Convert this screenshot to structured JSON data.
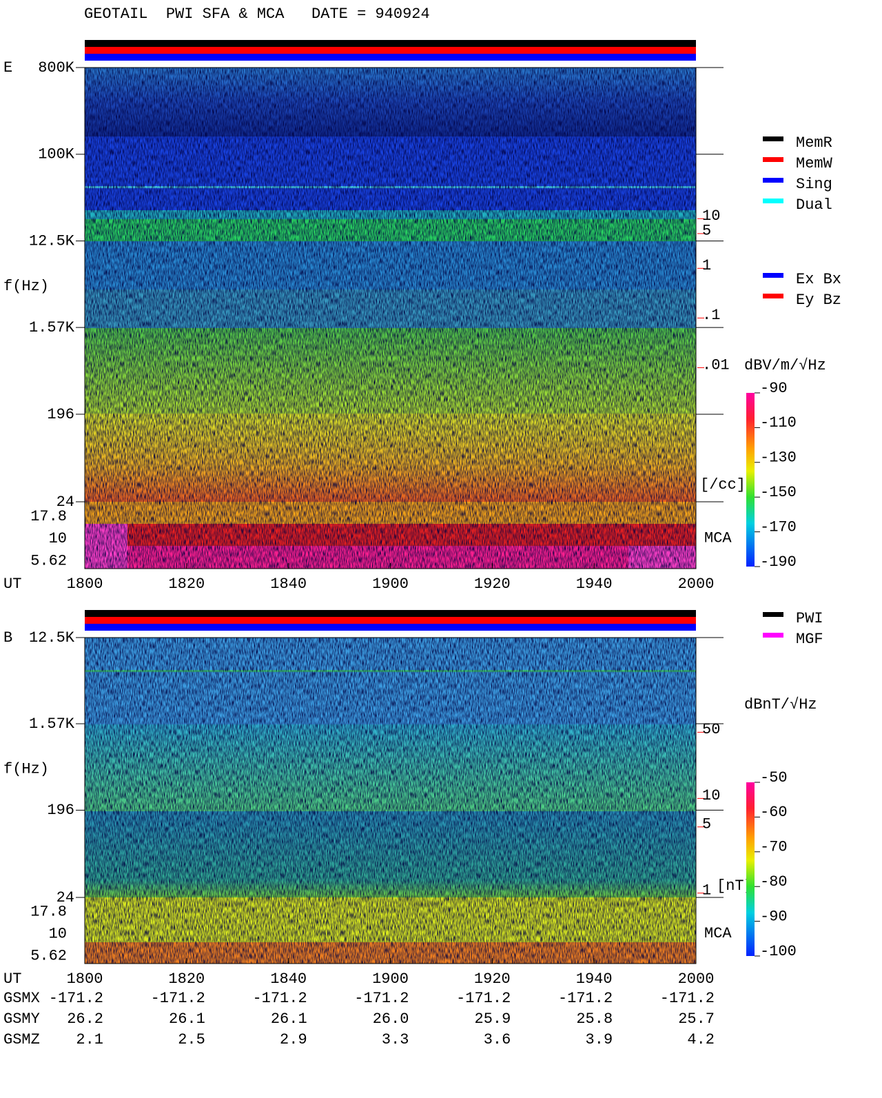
{
  "title": "GEOTAIL  PWI SFA & MCA   DATE = 940924",
  "chart_data": [
    {
      "type": "spectrogram",
      "panel_label": "E",
      "y_label": "f(Hz)",
      "y_scale": "log",
      "ylim": [
        800000,
        24
      ],
      "yticks": [
        {
          "value": 800000,
          "label": "800K"
        },
        {
          "value": 100000,
          "label": "100K"
        },
        {
          "value": 12500,
          "label": "12.5K"
        },
        {
          "value": 1570,
          "label": "1.57K"
        },
        196,
        24
      ],
      "mca_label": "MCA",
      "mca_channels": [
        "17.8",
        "10",
        "5.62"
      ],
      "x_label": "UT",
      "xticks": [
        "1800",
        "1820",
        "1840",
        "1900",
        "1920",
        "1940",
        "2000"
      ],
      "y2_scale": "log",
      "y2lim": [
        11000,
        2e-05
      ],
      "y2ticks": [
        10,
        5,
        1,
        {
          "value": 0.1,
          "label": ".1"
        },
        {
          "value": 0.01,
          "label": ".01"
        }
      ],
      "y2_unit": "[/cc]",
      "colorbar": {
        "label": "dBV/m/√Hz",
        "lim": [
          -90,
          -190
        ],
        "ticks": [
          -90,
          -110,
          -130,
          -150,
          -170,
          -190
        ]
      },
      "legends": [
        [
          {
            "name": "MemR",
            "color": "#000000"
          },
          {
            "name": "MemW",
            "color": "#ff0000"
          },
          {
            "name": "Sing",
            "color": "#0000ff"
          },
          {
            "name": "Dual",
            "color": "#00ffff"
          }
        ],
        [
          {
            "name": "Ex Bx",
            "color": "#0000ff"
          },
          {
            "name": "Ey Bz",
            "color": "#ff0000"
          }
        ]
      ]
    },
    {
      "type": "spectrogram",
      "panel_label": "B",
      "y_label": "f(Hz)",
      "y_scale": "log",
      "ylim": [
        12500,
        24
      ],
      "yticks": [
        {
          "value": 12500,
          "label": "12.5K"
        },
        {
          "value": 1570,
          "label": "1.57K"
        },
        196,
        24
      ],
      "mca_label": "MCA",
      "mca_channels": [
        "17.8",
        "10",
        "5.62"
      ],
      "x_label": "UT",
      "xticks": [
        "1800",
        "1820",
        "1840",
        "1900",
        "1920",
        "1940",
        "2000"
      ],
      "y2_scale": "log",
      "y2lim": [
        500,
        0.9
      ],
      "y2ticks": [
        50,
        10,
        5,
        1
      ],
      "y2_unit": "[nT]",
      "colorbar": {
        "label": "dBnT/√Hz",
        "lim": [
          -50,
          -100
        ],
        "ticks": [
          -50,
          -60,
          -70,
          -80,
          -90,
          -100
        ]
      },
      "legends": [
        [
          {
            "name": "PWI",
            "color": "#000000"
          },
          {
            "name": "MGF",
            "color": "#ff00ff"
          }
        ]
      ],
      "orbit": [
        {
          "name": "GSMX",
          "values": [
            "-171.2",
            "-171.2",
            "-171.2",
            "-171.2",
            "-171.2",
            "-171.2",
            "-171.2"
          ]
        },
        {
          "name": "GSMY",
          "values": [
            "26.2",
            "26.1",
            "26.1",
            "26.0",
            "25.9",
            "25.8",
            "25.7"
          ]
        },
        {
          "name": "GSMZ",
          "values": [
            "2.1",
            "2.5",
            "2.9",
            "3.3",
            "3.6",
            "3.9",
            "4.2"
          ]
        }
      ]
    }
  ]
}
